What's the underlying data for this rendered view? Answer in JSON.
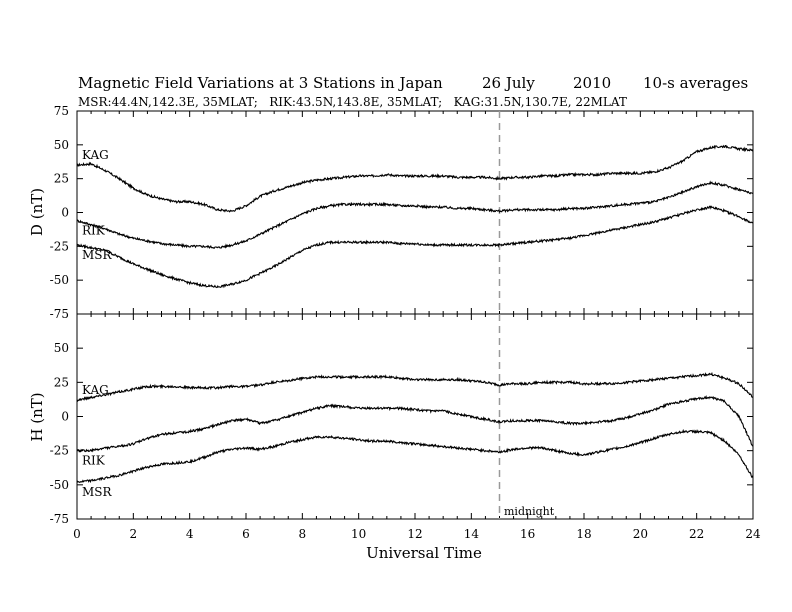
{
  "header": {
    "title_main": "Magnetic Field Variations at 3 Stations in Japan",
    "title_date": "26 July",
    "title_year": "2010",
    "title_avg": "10-s averages",
    "subtitle": "MSR:44.4N,142.3E, 35MLAT;   RIK:43.5N,143.8E, 35MLAT;   KAG:31.5N,130.7E, 22MLAT"
  },
  "chart_data": [
    {
      "type": "line",
      "panel": "top",
      "ylabel": "D (nT)",
      "xlabel": "",
      "xlim": [
        0,
        24
      ],
      "ylim": [
        -75,
        75
      ],
      "yticks": [
        75,
        50,
        25,
        0,
        -25,
        -50,
        -75
      ],
      "marker_line_x": 15,
      "series": [
        {
          "name": "KAG",
          "color": "#000000",
          "x": [
            0,
            0.5,
            1,
            1.5,
            2,
            2.5,
            3,
            3.5,
            4,
            4.5,
            5,
            5.5,
            6,
            6.5,
            7,
            7.5,
            8,
            8.5,
            9,
            9.5,
            10,
            10.5,
            11,
            11.5,
            12,
            12.5,
            13,
            13.5,
            14,
            14.5,
            15,
            15.5,
            16,
            16.5,
            17,
            17.5,
            18,
            18.5,
            19,
            19.5,
            20,
            20.5,
            21,
            21.5,
            22,
            22.5,
            23,
            23.5,
            24
          ],
          "values": [
            35,
            36,
            31,
            25,
            18,
            13,
            10,
            8,
            8,
            6,
            2,
            1,
            5,
            12,
            16,
            19,
            22,
            24,
            25,
            26,
            27,
            27,
            28,
            27,
            27,
            27,
            27,
            26,
            26,
            26,
            25,
            26,
            26,
            27,
            27,
            28,
            28,
            28,
            29,
            29,
            29,
            30,
            33,
            38,
            45,
            48,
            49,
            47,
            46
          ]
        },
        {
          "name": "RIK",
          "color": "#000000",
          "x": [
            0,
            0.5,
            1,
            1.5,
            2,
            2.5,
            3,
            3.5,
            4,
            4.5,
            5,
            5.5,
            6,
            6.5,
            7,
            7.5,
            8,
            8.5,
            9,
            9.5,
            10,
            10.5,
            11,
            11.5,
            12,
            12.5,
            13,
            13.5,
            14,
            14.5,
            15,
            15.5,
            16,
            16.5,
            17,
            17.5,
            18,
            18.5,
            19,
            19.5,
            20,
            20.5,
            21,
            21.5,
            22,
            22.5,
            23,
            23.5,
            24
          ],
          "values": [
            -6,
            -9,
            -12,
            -16,
            -19,
            -21,
            -23,
            -24,
            -25,
            -25,
            -26,
            -24,
            -21,
            -16,
            -11,
            -6,
            -1,
            3,
            5,
            6,
            6,
            6,
            6,
            5,
            5,
            4,
            4,
            3,
            3,
            2,
            1,
            2,
            2,
            2,
            2,
            3,
            3,
            4,
            5,
            6,
            7,
            8,
            11,
            15,
            19,
            22,
            20,
            17,
            14
          ]
        },
        {
          "name": "MSR",
          "color": "#000000",
          "x": [
            0,
            0.5,
            1,
            1.5,
            2,
            2.5,
            3,
            3.5,
            4,
            4.5,
            5,
            5.5,
            6,
            6.5,
            7,
            7.5,
            8,
            8.5,
            9,
            9.5,
            10,
            10.5,
            11,
            11.5,
            12,
            12.5,
            13,
            13.5,
            14,
            14.5,
            15,
            15.5,
            16,
            16.5,
            17,
            17.5,
            18,
            18.5,
            19,
            19.5,
            20,
            20.5,
            21,
            21.5,
            22,
            22.5,
            23,
            23.5,
            24
          ],
          "values": [
            -24,
            -26,
            -28,
            -33,
            -38,
            -42,
            -46,
            -49,
            -52,
            -54,
            -55,
            -53,
            -50,
            -45,
            -40,
            -34,
            -28,
            -24,
            -22,
            -22,
            -22,
            -22,
            -22,
            -23,
            -23,
            -24,
            -24,
            -24,
            -24,
            -24,
            -24,
            -23,
            -22,
            -21,
            -20,
            -19,
            -17,
            -15,
            -13,
            -11,
            -9,
            -7,
            -4,
            -1,
            2,
            4,
            1,
            -3,
            -8
          ]
        }
      ]
    },
    {
      "type": "line",
      "panel": "bottom",
      "ylabel": "H (nT)",
      "xlabel": "Universal Time",
      "xlim": [
        0,
        24
      ],
      "ylim": [
        -75,
        75
      ],
      "yticks": [
        75,
        50,
        25,
        0,
        -25,
        -50,
        -75
      ],
      "xticks": [
        0,
        2,
        4,
        6,
        8,
        10,
        12,
        14,
        16,
        18,
        20,
        22,
        24
      ],
      "marker_line_x": 15,
      "marker_label": "midnight",
      "series": [
        {
          "name": "KAG",
          "color": "#000000",
          "x": [
            0,
            0.5,
            1,
            1.5,
            2,
            2.5,
            3,
            3.5,
            4,
            4.5,
            5,
            5.5,
            6,
            6.5,
            7,
            7.5,
            8,
            8.5,
            9,
            9.5,
            10,
            10.5,
            11,
            11.5,
            12,
            12.5,
            13,
            13.5,
            14,
            14.5,
            15,
            15.5,
            16,
            16.5,
            17,
            17.5,
            18,
            18.5,
            19,
            19.5,
            20,
            20.5,
            21,
            21.5,
            22,
            22.5,
            23,
            23.5,
            24
          ],
          "values": [
            12,
            14,
            16,
            18,
            20,
            22,
            22,
            22,
            21,
            21,
            21,
            22,
            22,
            23,
            25,
            26,
            28,
            29,
            29,
            29,
            29,
            29,
            29,
            28,
            27,
            27,
            27,
            27,
            26,
            25,
            23,
            24,
            24,
            25,
            25,
            25,
            24,
            24,
            24,
            25,
            26,
            27,
            28,
            29,
            30,
            31,
            28,
            24,
            14
          ]
        },
        {
          "name": "RIK",
          "color": "#000000",
          "x": [
            0,
            0.5,
            1,
            1.5,
            2,
            2.5,
            3,
            3.5,
            4,
            4.5,
            5,
            5.5,
            6,
            6.5,
            7,
            7.5,
            8,
            8.5,
            9,
            9.5,
            10,
            10.5,
            11,
            11.5,
            12,
            12.5,
            13,
            13.5,
            14,
            14.5,
            15,
            15.5,
            16,
            16.5,
            17,
            17.5,
            18,
            18.5,
            19,
            19.5,
            20,
            20.5,
            21,
            21.5,
            22,
            22.5,
            23,
            23.5,
            24
          ],
          "values": [
            -25,
            -25,
            -23,
            -22,
            -20,
            -16,
            -13,
            -12,
            -11,
            -9,
            -6,
            -3,
            -2,
            -5,
            -3,
            0,
            3,
            6,
            8,
            7,
            6,
            6,
            6,
            6,
            5,
            4,
            4,
            2,
            0,
            -2,
            -4,
            -3,
            -3,
            -3,
            -4,
            -5,
            -5,
            -4,
            -3,
            -1,
            2,
            5,
            9,
            11,
            13,
            14,
            11,
            0,
            -22
          ]
        },
        {
          "name": "MSR",
          "color": "#000000",
          "x": [
            0,
            0.5,
            1,
            1.5,
            2,
            2.5,
            3,
            3.5,
            4,
            4.5,
            5,
            5.5,
            6,
            6.5,
            7,
            7.5,
            8,
            8.5,
            9,
            9.5,
            10,
            10.5,
            11,
            11.5,
            12,
            12.5,
            13,
            13.5,
            14,
            14.5,
            15,
            15.5,
            16,
            16.5,
            17,
            17.5,
            18,
            18.5,
            19,
            19.5,
            20,
            20.5,
            21,
            21.5,
            22,
            22.5,
            23,
            23.5,
            24
          ],
          "values": [
            -48,
            -47,
            -45,
            -43,
            -40,
            -37,
            -35,
            -34,
            -33,
            -30,
            -26,
            -24,
            -23,
            -24,
            -22,
            -19,
            -17,
            -15,
            -15,
            -16,
            -17,
            -18,
            -18,
            -19,
            -20,
            -21,
            -22,
            -23,
            -24,
            -25,
            -26,
            -24,
            -23,
            -23,
            -25,
            -27,
            -28,
            -26,
            -24,
            -22,
            -19,
            -16,
            -13,
            -11,
            -11,
            -12,
            -18,
            -28,
            -45
          ]
        }
      ]
    }
  ]
}
